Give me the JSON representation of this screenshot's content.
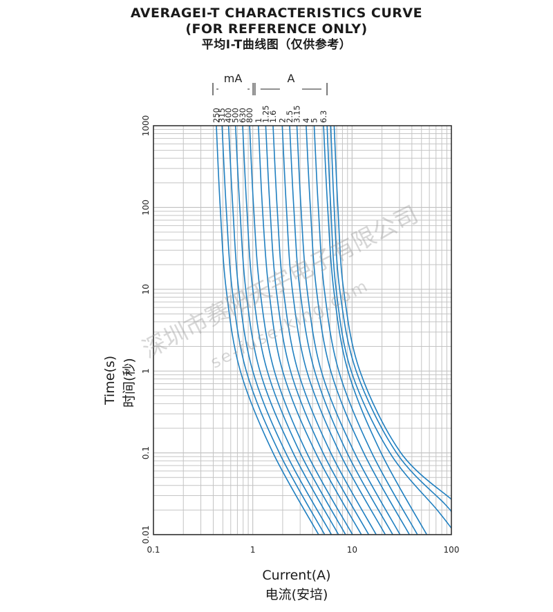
{
  "title": {
    "line1": "AVERAGEI-T CHARACTERISTICS CURVE",
    "line2": "(FOR REFERENCE ONLY)",
    "line3": "平均I-T曲线图（仅供参考）"
  },
  "watermark": {
    "company": "深圳市赛阳天宇电子有限公司",
    "site": "se-fuse-king.com"
  },
  "colors": {
    "curve": "#1f7fc0",
    "grid": "#c4c4c4",
    "frame": "#333333"
  },
  "chart_data": {
    "type": "line",
    "xscale": "log",
    "yscale": "log",
    "xlim": [
      0.1,
      100
    ],
    "ylim": [
      0.01,
      1000
    ],
    "xlabel": "Current(A)",
    "xlabel_cn": "电流(安培)",
    "ylabel": "Time(s)",
    "ylabel_cn": "时间(秒)",
    "x_ticks": [
      "0.1",
      "1",
      "10",
      "100"
    ],
    "y_ticks": [
      "0.01",
      "0.1",
      "1",
      "10",
      "100",
      "1000"
    ],
    "grid": true,
    "rating_groups": [
      {
        "label": "mA",
        "ratings": [
          "250",
          "315",
          "400",
          "500",
          "630",
          "800"
        ]
      },
      {
        "label": "A",
        "ratings": [
          "1",
          "1.25",
          "1.6",
          "2",
          "2.5",
          "3.15",
          "4",
          "5",
          "6.3"
        ]
      }
    ],
    "series": [
      {
        "name": "250",
        "points": [
          [
            0.43,
            1000
          ],
          [
            0.47,
            100
          ],
          [
            0.54,
            10
          ],
          [
            0.75,
            1
          ],
          [
            1.6,
            0.1
          ],
          [
            4.6,
            0.01
          ]
        ]
      },
      {
        "name": "315",
        "points": [
          [
            0.49,
            1000
          ],
          [
            0.54,
            100
          ],
          [
            0.62,
            10
          ],
          [
            0.86,
            1
          ],
          [
            1.85,
            0.1
          ],
          [
            5.3,
            0.01
          ]
        ]
      },
      {
        "name": "400",
        "points": [
          [
            0.57,
            1000
          ],
          [
            0.63,
            100
          ],
          [
            0.72,
            10
          ],
          [
            1.0,
            1
          ],
          [
            2.15,
            0.1
          ],
          [
            6.2,
            0.01
          ]
        ]
      },
      {
        "name": "500",
        "points": [
          [
            0.67,
            1000
          ],
          [
            0.74,
            100
          ],
          [
            0.85,
            10
          ],
          [
            1.18,
            1
          ],
          [
            2.55,
            0.1
          ],
          [
            7.3,
            0.01
          ]
        ]
      },
      {
        "name": "630",
        "points": [
          [
            0.79,
            1000
          ],
          [
            0.87,
            100
          ],
          [
            1.0,
            10
          ],
          [
            1.4,
            1
          ],
          [
            3.0,
            0.1
          ],
          [
            8.6,
            0.01
          ]
        ]
      },
      {
        "name": "800",
        "points": [
          [
            0.93,
            1000
          ],
          [
            1.02,
            100
          ],
          [
            1.18,
            10
          ],
          [
            1.65,
            1
          ],
          [
            3.5,
            0.1
          ],
          [
            10.1,
            0.01
          ]
        ]
      },
      {
        "name": "1",
        "points": [
          [
            1.14,
            1000
          ],
          [
            1.25,
            100
          ],
          [
            1.45,
            10
          ],
          [
            2.0,
            1
          ],
          [
            4.3,
            0.1
          ],
          [
            12.4,
            0.01
          ]
        ]
      },
      {
        "name": "1.25",
        "points": [
          [
            1.35,
            1000
          ],
          [
            1.49,
            100
          ],
          [
            1.72,
            10
          ],
          [
            2.4,
            1
          ],
          [
            5.1,
            0.1
          ],
          [
            14.7,
            0.01
          ]
        ]
      },
      {
        "name": "1.6",
        "points": [
          [
            1.6,
            1000
          ],
          [
            1.76,
            100
          ],
          [
            2.03,
            10
          ],
          [
            2.85,
            1
          ],
          [
            6.1,
            0.1
          ],
          [
            17.5,
            0.01
          ]
        ]
      },
      {
        "name": "2",
        "points": [
          [
            1.98,
            1000
          ],
          [
            2.18,
            100
          ],
          [
            2.5,
            10
          ],
          [
            3.5,
            1
          ],
          [
            7.5,
            0.1
          ],
          [
            21.6,
            0.01
          ]
        ]
      },
      {
        "name": "2.5",
        "points": [
          [
            2.35,
            1000
          ],
          [
            2.59,
            100
          ],
          [
            2.98,
            10
          ],
          [
            4.2,
            1
          ],
          [
            8.9,
            0.1
          ],
          [
            25.7,
            0.01
          ]
        ]
      },
      {
        "name": "3.15",
        "points": [
          [
            2.78,
            1000
          ],
          [
            3.06,
            100
          ],
          [
            3.52,
            10
          ],
          [
            4.9,
            1
          ],
          [
            10.6,
            0.1
          ],
          [
            30.4,
            0.01
          ]
        ]
      },
      {
        "name": "4",
        "points": [
          [
            3.45,
            1000
          ],
          [
            3.8,
            100
          ],
          [
            4.37,
            10
          ],
          [
            6.1,
            1
          ],
          [
            13.1,
            0.1
          ],
          [
            37.8,
            0.01
          ]
        ]
      },
      {
        "name": "5",
        "points": [
          [
            4.15,
            1000
          ],
          [
            4.57,
            100
          ],
          [
            5.25,
            10
          ],
          [
            7.35,
            1
          ],
          [
            15.8,
            0.1
          ],
          [
            45.5,
            0.01
          ]
        ]
      },
      {
        "name": "6.3",
        "points": [
          [
            5.16,
            1000
          ],
          [
            5.68,
            100
          ],
          [
            6.53,
            10
          ],
          [
            9.1,
            1
          ],
          [
            19.6,
            0.1
          ],
          [
            56.5,
            0.01
          ]
        ]
      }
    ],
    "extra_curves": [
      {
        "points": [
          [
            5.6,
            1000
          ],
          [
            6.1,
            100
          ],
          [
            6.9,
            10
          ],
          [
            9.8,
            1
          ],
          [
            24,
            0.1
          ],
          [
            72,
            0.02
          ],
          [
            100,
            0.012
          ]
        ]
      },
      {
        "points": [
          [
            6.1,
            1000
          ],
          [
            6.6,
            100
          ],
          [
            7.5,
            10
          ],
          [
            11,
            1
          ],
          [
            28,
            0.1
          ],
          [
            85,
            0.024
          ],
          [
            100,
            0.019
          ]
        ]
      },
      {
        "points": [
          [
            6.6,
            1000
          ],
          [
            7.2,
            100
          ],
          [
            8.2,
            10
          ],
          [
            12,
            1
          ],
          [
            31,
            0.1
          ],
          [
            100,
            0.027
          ]
        ]
      }
    ]
  }
}
